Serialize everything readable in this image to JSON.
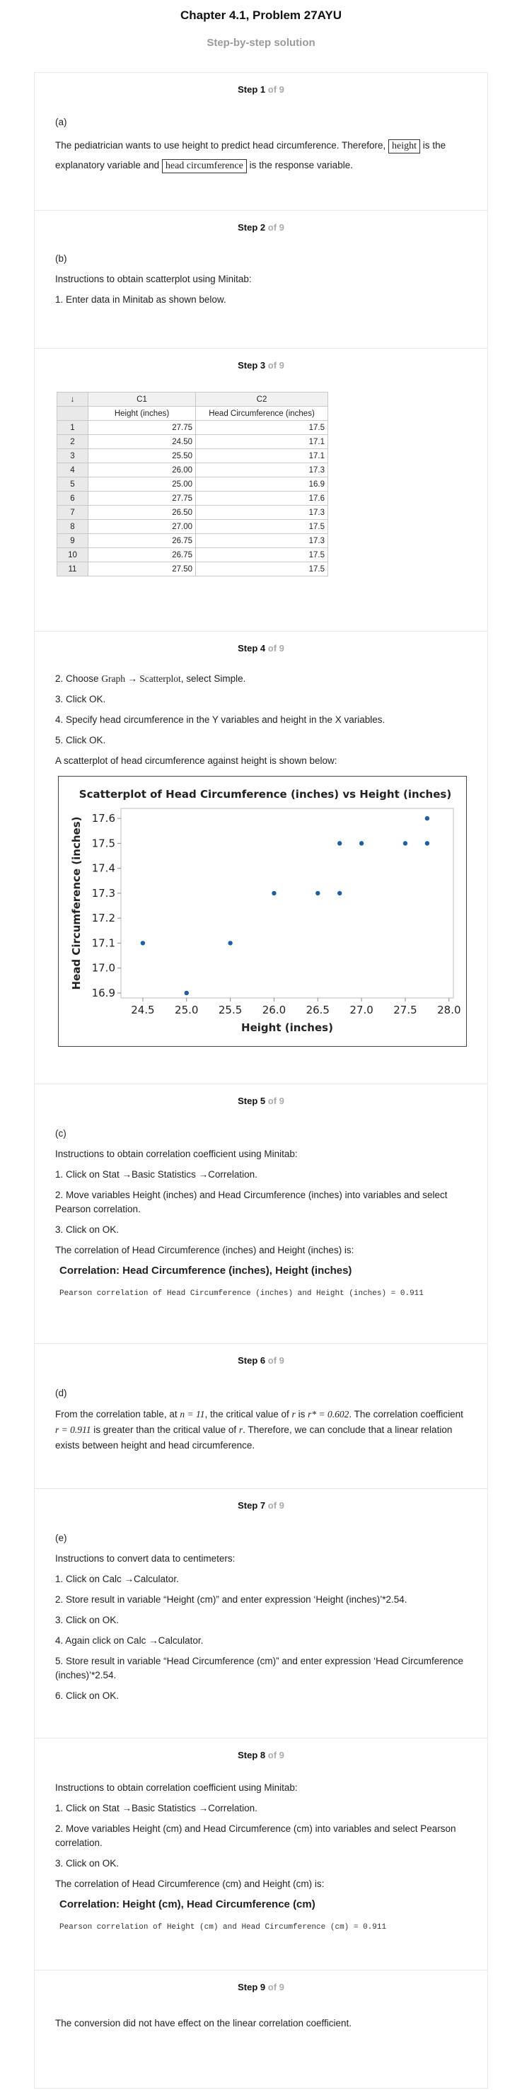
{
  "header": {
    "title": "Chapter 4.1, Problem 27AYU",
    "subtitle": "Step-by-step solution"
  },
  "step_word": "Step",
  "step_of": "of 9",
  "steps": [
    {
      "num": "1"
    },
    {
      "num": "2"
    },
    {
      "num": "3"
    },
    {
      "num": "4"
    },
    {
      "num": "5"
    },
    {
      "num": "6"
    },
    {
      "num": "7"
    },
    {
      "num": "8"
    },
    {
      "num": "9"
    }
  ],
  "s1": {
    "part": "(a)",
    "text_a": "The pediatrician wants to use height to predict head circumference. Therefore,",
    "box1": "height",
    "text_b": "is",
    "text_c": "the explanatory variable and",
    "box2": "head circumference",
    "text_d": "is the response variable."
  },
  "s2": {
    "part": "(b)",
    "line1": "Instructions to obtain scatterplot using Minitab:",
    "line2": "1. Enter data in Minitab as shown below."
  },
  "s3": {
    "corner": "↓",
    "col1": "C1",
    "col2": "C2",
    "name1": "Height (inches)",
    "name2": "Head Circumference (inches)",
    "rows": [
      {
        "i": "1",
        "h": "27.75",
        "c": "17.5"
      },
      {
        "i": "2",
        "h": "24.50",
        "c": "17.1"
      },
      {
        "i": "3",
        "h": "25.50",
        "c": "17.1"
      },
      {
        "i": "4",
        "h": "26.00",
        "c": "17.3"
      },
      {
        "i": "5",
        "h": "25.00",
        "c": "16.9"
      },
      {
        "i": "6",
        "h": "27.75",
        "c": "17.6"
      },
      {
        "i": "7",
        "h": "26.50",
        "c": "17.3"
      },
      {
        "i": "8",
        "h": "27.00",
        "c": "17.5"
      },
      {
        "i": "9",
        "h": "26.75",
        "c": "17.3"
      },
      {
        "i": "10",
        "h": "26.75",
        "c": "17.5"
      },
      {
        "i": "11",
        "h": "27.50",
        "c": "17.5"
      }
    ]
  },
  "s4": {
    "l1a": "2. Choose",
    "l1b": "Graph → Scatterplot",
    "l1c": ", select Simple.",
    "l2": "3. Click OK.",
    "l3": "4. Specify head circumference in the Y variables and height in the X variables.",
    "l4": "5. Click OK.",
    "l5": "A scatterplot of head circumference against height is shown below:"
  },
  "chart_data": {
    "type": "scatter",
    "title": "Scatterplot of Head Circumference (inches) vs Height (inches)",
    "xlabel": "Height (inches)",
    "ylabel": "Head Circumference (inches)",
    "xlim": [
      24.25,
      28.05
    ],
    "ylim": [
      16.88,
      17.64
    ],
    "xticks": [
      "24.5",
      "25.0",
      "25.5",
      "26.0",
      "26.5",
      "27.0",
      "27.5",
      "28.0"
    ],
    "xtick_values": [
      24.5,
      25.0,
      25.5,
      26.0,
      26.5,
      27.0,
      27.5,
      28.0
    ],
    "yticks": [
      "16.9",
      "17.0",
      "17.1",
      "17.2",
      "17.3",
      "17.4",
      "17.5",
      "17.6"
    ],
    "ytick_values": [
      16.9,
      17.0,
      17.1,
      17.2,
      17.3,
      17.4,
      17.5,
      17.6
    ],
    "grid": false,
    "point_color": "#1f5fa0",
    "points": [
      {
        "x": 27.75,
        "y": 17.5
      },
      {
        "x": 24.5,
        "y": 17.1
      },
      {
        "x": 25.5,
        "y": 17.1
      },
      {
        "x": 26.0,
        "y": 17.3
      },
      {
        "x": 25.0,
        "y": 16.9
      },
      {
        "x": 27.75,
        "y": 17.6
      },
      {
        "x": 26.5,
        "y": 17.3
      },
      {
        "x": 27.0,
        "y": 17.5
      },
      {
        "x": 26.75,
        "y": 17.3
      },
      {
        "x": 26.75,
        "y": 17.5
      },
      {
        "x": 27.5,
        "y": 17.5
      }
    ]
  },
  "s5": {
    "part": "(c)",
    "l1": "Instructions to obtain correlation coefficient using Minitab:",
    "l2": "1. Click on Stat →Basic Statistics →Correlation.",
    "l3": "2. Move variables Height (inches) and Head Circumference (inches) into variables and select Pearson correlation.",
    "l4": "3. Click on OK.",
    "l5": "The correlation of Head Circumference (inches) and Height (inches) is:",
    "result_title": "Correlation: Head Circumference (inches), Height (inches)",
    "result_line": "Pearson correlation of Head Circumference (inches) and Height (inches) = 0.911"
  },
  "s6": {
    "part": "(d)",
    "t1": "From the correlation table, at",
    "m1": "n = 11",
    "t2": ", the critical value of",
    "m2": "r",
    "t3": "is",
    "m3": "r* = 0.602",
    "t4": ". The correlation coefficient",
    "m4": "r = 0.911",
    "t5": "is greater than the critical value of",
    "m5": "r",
    "t6": ". Therefore, we can conclude that a linear relation exists between height and head circumference."
  },
  "s7": {
    "part": "(e)",
    "l1": "Instructions to convert data to centimeters:",
    "l2": "1. Click on Calc →Calculator.",
    "l3": "2. Store result in variable “Height (cm)” and enter expression ‘Height (inches)’*2.54.",
    "l4": "3. Click on OK.",
    "l5": "4. Again click on Calc →Calculator.",
    "l6": "5. Store result in variable “Head Circumference (cm)” and enter expression ‘Head Circumference (inches)’*2.54.",
    "l7": "6. Click on OK."
  },
  "s8": {
    "l1": "Instructions to obtain correlation coefficient using Minitab:",
    "l2": "1. Click on Stat →Basic Statistics →Correlation.",
    "l3": "2. Move variables Height (cm) and Head Circumference (cm) into variables and select Pearson correlation.",
    "l4": "3. Click on OK.",
    "l5": "The correlation of Head Circumference (cm) and Height (cm) is:",
    "result_title": "Correlation: Height (cm), Head Circumference (cm)",
    "result_line": "Pearson correlation of Height (cm) and Head Circumference (cm) = 0.911"
  },
  "s9": {
    "l1": "The conversion did not have effect on the linear correlation coefficient."
  }
}
